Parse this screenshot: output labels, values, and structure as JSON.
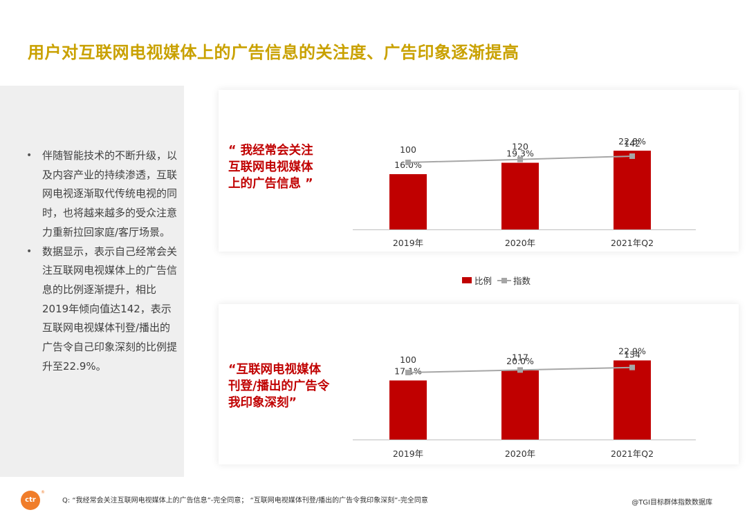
{
  "title": "用户对互联网电视媒体上的广告信息的关注度、广告印象逐渐提高",
  "bullets": [
    "伴随智能技术的不断升级，以及内容产业的持续渗透，互联网电视逐渐取代传统电视的同时，也将越来越多的受众注意力重新拉回家庭/客厅场景。",
    "数据显示，表示自己经常会关注互联网电视媒体上的广告信息的比例逐渐提升，相比2019年倾向值达142，表示互联网电视媒体刊登/播出的广告令自己印象深刻的比例提升至22.9%。"
  ],
  "quote1": {
    "line1": "“ 我经常会关注",
    "line2": "互联网电视媒体",
    "line3": "上的广告信息 ”"
  },
  "quote2": {
    "line1": "“互联网电视媒体",
    "line2": "刊登/播出的广告令",
    "line3": "我印象深刻”"
  },
  "legend": {
    "bar": "比例",
    "line": "指数"
  },
  "footer": {
    "logo": "ctr",
    "logo_mark": "®",
    "question": "Q:   “我经常会关注互联网电视媒体上的广告信息”-完全同意；  “互联网电视媒体刊登/播出的广告令我印象深刻”-完全同意",
    "source": "@TGI目标群体指数数据库"
  },
  "colors": {
    "bar": "#c00000",
    "line": "#a6a6a6",
    "title": "#c9a100",
    "accent": "#c00000"
  },
  "chart_data": [
    {
      "type": "bar",
      "title": "“ 我经常会关注互联网电视媒体上的广告信息 ”",
      "categories": [
        "2019年",
        "2020年",
        "2021年Q2"
      ],
      "series": [
        {
          "name": "比例",
          "type": "bar",
          "values": [
            16.0,
            19.3,
            22.8
          ],
          "labels": [
            "16.0%",
            "19.3%",
            "22.8%"
          ]
        },
        {
          "name": "指数",
          "type": "line",
          "values": [
            100,
            120,
            142
          ],
          "labels": [
            "100",
            "120",
            "142"
          ]
        }
      ],
      "ylim": [
        0,
        25
      ],
      "index_ylim": [
        -350,
        230
      ]
    },
    {
      "type": "bar",
      "title": "“互联网电视媒体刊登/播出的广告令我印象深刻”",
      "categories": [
        "2019年",
        "2020年",
        "2021年Q2"
      ],
      "series": [
        {
          "name": "比例",
          "type": "bar",
          "values": [
            17.1,
            20.0,
            22.9
          ],
          "labels": [
            "17.1%",
            "20.0%",
            "22.9%"
          ]
        },
        {
          "name": "指数",
          "type": "line",
          "values": [
            100,
            117,
            134
          ],
          "labels": [
            "100",
            "117",
            "134"
          ]
        }
      ],
      "ylim": [
        0,
        25
      ],
      "index_ylim": [
        -350,
        230
      ]
    }
  ]
}
